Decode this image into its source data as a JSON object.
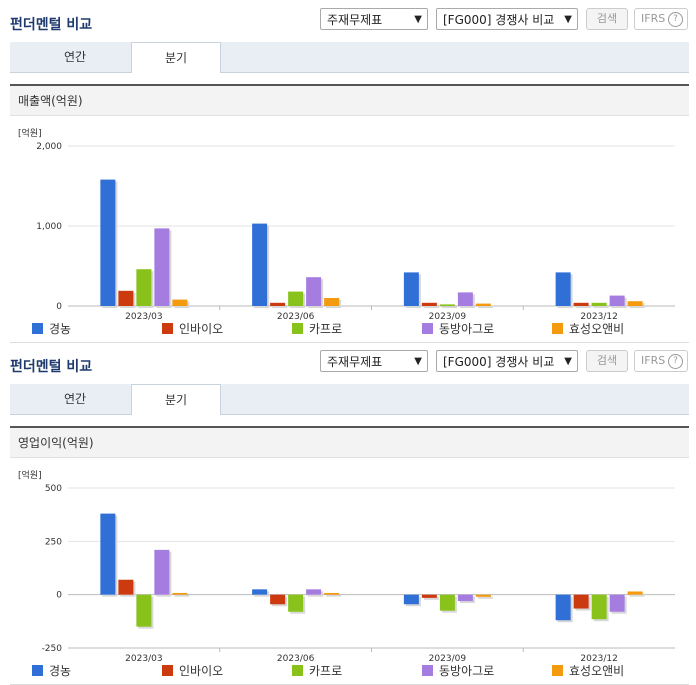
{
  "title": "펀더멘털 비교",
  "statement_select": "주재무제표",
  "compare_select": "[FG000] 경쟁사 비교",
  "search_label": "검색",
  "ifrs_label": "IFRS",
  "help_glyph": "?",
  "tabs": [
    "연간",
    "분기"
  ],
  "active_tab": "분기",
  "colors": [
    "#2f6fd6",
    "#cc3a10",
    "#88c21b",
    "#a57de0",
    "#f39a0f"
  ],
  "chart_data": [
    {
      "type": "bar",
      "title": "매출액(억원)",
      "unit": "[억원]",
      "categories": [
        "2023/03",
        "2023/06",
        "2023/09",
        "2023/12"
      ],
      "yticks": [
        0,
        1000,
        2000
      ],
      "ytick_labels": [
        "0",
        "1,000",
        "2,000"
      ],
      "ylim": [
        0,
        2000
      ],
      "series": [
        {
          "name": "경농",
          "values": [
            1580,
            1030,
            420,
            420
          ]
        },
        {
          "name": "인바이오",
          "values": [
            190,
            40,
            40,
            40
          ]
        },
        {
          "name": "카프로",
          "values": [
            460,
            180,
            20,
            40
          ]
        },
        {
          "name": "동방아그로",
          "values": [
            970,
            360,
            170,
            130
          ]
        },
        {
          "name": "효성오앤비",
          "values": [
            80,
            100,
            30,
            60
          ]
        }
      ]
    },
    {
      "type": "bar",
      "title": "영업이익(억원)",
      "unit": "[억원]",
      "categories": [
        "2023/03",
        "2023/06",
        "2023/09",
        "2023/12"
      ],
      "yticks": [
        -250,
        0,
        250,
        500
      ],
      "ytick_labels": [
        "-250",
        "0",
        "250",
        "500"
      ],
      "ylim": [
        -250,
        500
      ],
      "series": [
        {
          "name": "경농",
          "values": [
            380,
            25,
            -45,
            -120
          ]
        },
        {
          "name": "인바이오",
          "values": [
            70,
            -45,
            -15,
            -65
          ]
        },
        {
          "name": "카프로",
          "values": [
            -150,
            -80,
            -75,
            -115
          ]
        },
        {
          "name": "동방아그로",
          "values": [
            210,
            25,
            -30,
            -80
          ]
        },
        {
          "name": "효성오앤비",
          "values": [
            8,
            8,
            -10,
            15
          ]
        }
      ]
    }
  ]
}
